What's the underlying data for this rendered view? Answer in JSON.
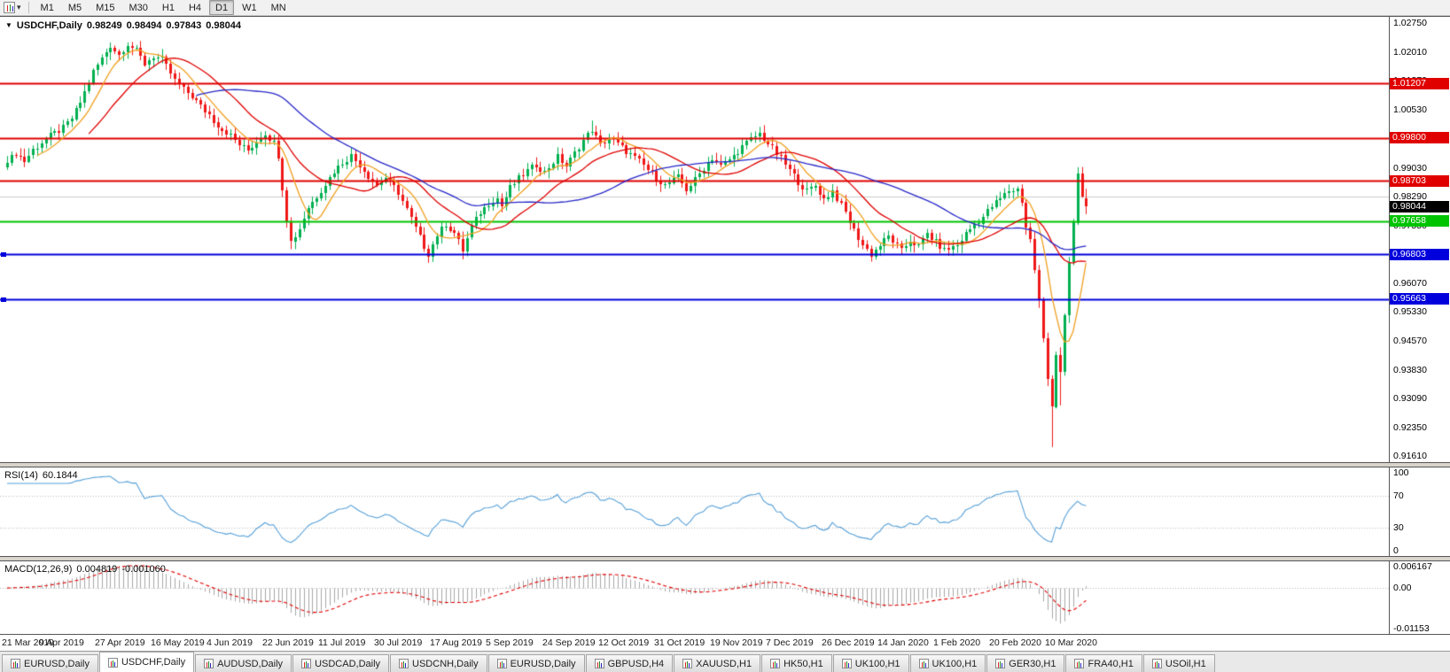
{
  "toolbar": {
    "timeframes": [
      {
        "label": "M1",
        "active": false
      },
      {
        "label": "M5",
        "active": false
      },
      {
        "label": "M15",
        "active": false
      },
      {
        "label": "M30",
        "active": false
      },
      {
        "label": "H1",
        "active": false
      },
      {
        "label": "H4",
        "active": false
      },
      {
        "label": "D1",
        "active": true
      },
      {
        "label": "W1",
        "active": false
      },
      {
        "label": "MN",
        "active": false
      }
    ]
  },
  "chart_data": {
    "type": "candlestick",
    "symbol": "USDCHF",
    "timeframe": "Daily",
    "symbol_header": {
      "caret": "▼",
      "symbol": "USDCHF,Daily",
      "open": "0.98249",
      "high": "0.98494",
      "low": "0.97843",
      "close": "0.98044"
    },
    "current_ohlc": {
      "open": 0.98249,
      "high": 0.98494,
      "low": 0.97843,
      "close": 0.98044
    },
    "count": 252,
    "scale": {
      "top": 1.0292,
      "bottom": 0.9146
    },
    "anchors": [
      [
        0,
        0.9915
      ],
      [
        2,
        0.9942
      ],
      [
        4,
        0.9922
      ],
      [
        6,
        0.995
      ],
      [
        8,
        0.9968
      ],
      [
        10,
        0.9985
      ],
      [
        13,
        1.0005
      ],
      [
        15,
        1.003
      ],
      [
        17,
        1.0072
      ],
      [
        20,
        1.015
      ],
      [
        22,
        1.0185
      ],
      [
        24,
        1.0218
      ],
      [
        26,
        1.0195
      ],
      [
        28,
        1.0222
      ],
      [
        30,
        1.0205
      ],
      [
        32,
        1.0172
      ],
      [
        34,
        1.019
      ],
      [
        36,
        1.0182
      ],
      [
        39,
        1.0128
      ],
      [
        41,
        1.0105
      ],
      [
        43,
        1.0088
      ],
      [
        45,
        1.0062
      ],
      [
        47,
        1.004
      ],
      [
        49,
        1.0012
      ],
      [
        52,
        0.9985
      ],
      [
        54,
        0.9962
      ],
      [
        56,
        0.9948
      ],
      [
        58,
        0.9972
      ],
      [
        60,
        0.9992
      ],
      [
        62,
        0.9968
      ],
      [
        63,
        0.9935
      ],
      [
        64,
        0.9852
      ],
      [
        65,
        0.9772
      ],
      [
        66,
        0.9712
      ],
      [
        68,
        0.9748
      ],
      [
        70,
        0.9802
      ],
      [
        72,
        0.983
      ],
      [
        74,
        0.9862
      ],
      [
        76,
        0.9895
      ],
      [
        78,
        0.9918
      ],
      [
        80,
        0.9936
      ],
      [
        82,
        0.9912
      ],
      [
        84,
        0.9882
      ],
      [
        86,
        0.986
      ],
      [
        88,
        0.9878
      ],
      [
        91,
        0.984
      ],
      [
        93,
        0.9795
      ],
      [
        95,
        0.9748
      ],
      [
        97,
        0.9702
      ],
      [
        98,
        0.9682
      ],
      [
        100,
        0.973
      ],
      [
        102,
        0.976
      ],
      [
        104,
        0.9736
      ],
      [
        106,
        0.9692
      ],
      [
        108,
        0.9752
      ],
      [
        110,
        0.9788
      ],
      [
        112,
        0.9812
      ],
      [
        114,
        0.9825
      ],
      [
        115,
        0.9805
      ],
      [
        117,
        0.9852
      ],
      [
        119,
        0.9875
      ],
      [
        121,
        0.9895
      ],
      [
        123,
        0.9912
      ],
      [
        125,
        0.9892
      ],
      [
        128,
        0.9932
      ],
      [
        130,
        0.9908
      ],
      [
        132,
        0.994
      ],
      [
        134,
        0.9975
      ],
      [
        136,
        1.0002
      ],
      [
        138,
        0.9962
      ],
      [
        140,
        0.9982
      ],
      [
        143,
        0.9955
      ],
      [
        145,
        0.9938
      ],
      [
        147,
        0.992
      ],
      [
        149,
        0.9898
      ],
      [
        151,
        0.9878
      ],
      [
        153,
        0.9858
      ],
      [
        156,
        0.9878
      ],
      [
        158,
        0.9848
      ],
      [
        160,
        0.9872
      ],
      [
        162,
        0.9902
      ],
      [
        164,
        0.9928
      ],
      [
        166,
        0.9908
      ],
      [
        169,
        0.9934
      ],
      [
        171,
        0.9958
      ],
      [
        173,
        0.9978
      ],
      [
        175,
        0.9992
      ],
      [
        178,
        0.9952
      ],
      [
        180,
        0.9928
      ],
      [
        182,
        0.9896
      ],
      [
        184,
        0.9868
      ],
      [
        186,
        0.9842
      ],
      [
        188,
        0.9858
      ],
      [
        190,
        0.9822
      ],
      [
        192,
        0.9845
      ],
      [
        195,
        0.9788
      ],
      [
        197,
        0.9742
      ],
      [
        199,
        0.9706
      ],
      [
        201,
        0.968
      ],
      [
        203,
        0.9703
      ],
      [
        205,
        0.9728
      ],
      [
        208,
        0.969
      ],
      [
        210,
        0.9718
      ],
      [
        212,
        0.97
      ],
      [
        214,
        0.9734
      ],
      [
        216,
        0.9712
      ],
      [
        218,
        0.9692
      ],
      [
        221,
        0.9704
      ],
      [
        223,
        0.9734
      ],
      [
        225,
        0.9758
      ],
      [
        227,
        0.9778
      ],
      [
        229,
        0.9804
      ],
      [
        231,
        0.9824
      ],
      [
        233,
        0.9844
      ],
      [
        235,
        0.9848
      ],
      [
        236,
        0.9818
      ],
      [
        237,
        0.9752
      ],
      [
        238,
        0.9718
      ],
      [
        239,
        0.9642
      ],
      [
        240,
        0.956
      ],
      [
        241,
        0.9462
      ],
      [
        242,
        0.936
      ],
      [
        243,
        0.9295
      ],
      [
        244,
        0.9425
      ],
      [
        245,
        0.9382
      ],
      [
        246,
        0.952
      ],
      [
        247,
        0.9652
      ],
      [
        248,
        0.9762
      ],
      [
        249,
        0.9888
      ],
      [
        250,
        0.9826
      ],
      [
        251,
        0.9804
      ]
    ],
    "low_overrides": {
      "66": 0.9694,
      "98": 0.9659,
      "106": 0.9668,
      "201": 0.9662,
      "243": 0.9185,
      "245": 0.9292
    },
    "high_overrides": {
      "24": 1.0226,
      "28": 1.0226,
      "136": 1.0025,
      "175": 1.0009,
      "249": 0.9905
    },
    "y_axis_ticks": [
      "1.02750",
      "1.02010",
      "1.01270",
      "1.00530",
      "0.99780",
      "0.99030",
      "0.98290",
      "0.97550",
      "0.96800",
      "0.96070",
      "0.95330",
      "0.94570",
      "0.93830",
      "0.93090",
      "0.92350",
      "0.91610"
    ],
    "x_axis_labels": [
      {
        "label": "21 Mar 2019",
        "index": 0
      },
      {
        "label": "9 Apr 2019",
        "index": 13
      },
      {
        "label": "27 Apr 2019",
        "index": 26
      },
      {
        "label": "16 May 2019",
        "index": 39
      },
      {
        "label": "4 Jun 2019",
        "index": 52
      },
      {
        "label": "22 Jun 2019",
        "index": 65
      },
      {
        "label": "11 Jul 2019",
        "index": 78
      },
      {
        "label": "30 Jul 2019",
        "index": 91
      },
      {
        "label": "17 Aug 2019",
        "index": 104
      },
      {
        "label": "5 Sep 2019",
        "index": 117
      },
      {
        "label": "24 Sep 2019",
        "index": 130
      },
      {
        "label": "12 Oct 2019",
        "index": 143
      },
      {
        "label": "31 Oct 2019",
        "index": 156
      },
      {
        "label": "19 Nov 2019",
        "index": 169
      },
      {
        "label": "7 Dec 2019",
        "index": 182
      },
      {
        "label": "26 Dec 2019",
        "index": 195
      },
      {
        "label": "14 Jan 2020",
        "index": 208
      },
      {
        "label": "1 Feb 2020",
        "index": 221
      },
      {
        "label": "20 Feb 2020",
        "index": 234
      },
      {
        "label": "10 Mar 2020",
        "index": 247
      }
    ],
    "levels": [
      {
        "price": 1.01207,
        "label": "1.01207",
        "color": "#E00000",
        "width": 2,
        "badge": true,
        "handle": false
      },
      {
        "price": 0.998,
        "label": "0.99800",
        "color": "#E00000",
        "width": 2,
        "badge": true,
        "handle": false
      },
      {
        "price": 0.98703,
        "label": "0.98703",
        "color": "#E00000",
        "width": 2,
        "badge": true,
        "handle": false
      },
      {
        "price": 0.97658,
        "label": "0.97658",
        "color": "#00C400",
        "width": 2,
        "badge": true,
        "handle": false
      },
      {
        "price": 0.96803,
        "label": "0.96803",
        "color": "#0000DC",
        "width": 2,
        "badge": true,
        "handle": true
      },
      {
        "price": 0.95663,
        "label": "0.95663",
        "color": "#0000DC",
        "width": 2,
        "badge": true,
        "handle": true
      },
      {
        "price": 0.9829,
        "label": "",
        "color": "#CCCCCC",
        "width": 1,
        "badge": false,
        "handle": false
      }
    ],
    "current_price": {
      "value": 0.98044,
      "label": "0.98044",
      "color": "#000000"
    },
    "moving_averages": [
      {
        "period": 8,
        "color": "#F0A020"
      },
      {
        "period": 20,
        "color": "#E00000"
      },
      {
        "period": 45,
        "color": "#2828C8"
      }
    ]
  },
  "rsi": {
    "label": "RSI(14)",
    "value": "60.1844",
    "period": 14,
    "axis_labels": [
      "100",
      "70",
      "30",
      "0"
    ],
    "axis_values": [
      100,
      70,
      30,
      0
    ],
    "guide_levels": [
      70,
      30
    ],
    "line_color": "#56A0D8"
  },
  "macd": {
    "label": "MACD(12,26,9)",
    "value": "0.004819",
    "signal_value": "-0.001060",
    "axis_max_label": "0.006167",
    "axis_zero_label": "0.00",
    "axis_min_label": "-0.01153",
    "axis_max": 0.006167,
    "axis_min": -0.01153,
    "hist_color": "#A8A8A8",
    "signal_color": "#E00000"
  },
  "tabs": [
    {
      "label": "EURUSD,Daily",
      "active": false
    },
    {
      "label": "USDCHF,Daily",
      "active": true
    },
    {
      "label": "AUDUSD,Daily",
      "active": false
    },
    {
      "label": "USDCAD,Daily",
      "active": false
    },
    {
      "label": "USDCNH,Daily",
      "active": false
    },
    {
      "label": "EURUSD,Daily",
      "active": false
    },
    {
      "label": "GBPUSD,H4",
      "active": false
    },
    {
      "label": "XAUUSD,H1",
      "active": false
    },
    {
      "label": "HK50,H1",
      "active": false
    },
    {
      "label": "UK100,H1",
      "active": false
    },
    {
      "label": "UK100,H1",
      "active": false
    },
    {
      "label": "GER30,H1",
      "active": false
    },
    {
      "label": "FRA40,H1",
      "active": false
    },
    {
      "label": "USOil,H1",
      "active": false
    }
  ],
  "colors": {
    "bull": "#00B050",
    "bear": "#F01818",
    "chrome_bg": "#F1F1F1",
    "panel_bg": "#FFFFFF",
    "grid_dotted": "#B8B8B8"
  }
}
